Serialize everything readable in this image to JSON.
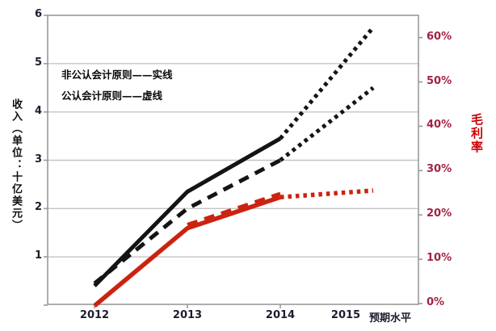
{
  "chart_data": {
    "type": "line",
    "title": "",
    "legend": [
      "非公认会计原则——实线",
      "公认会计原则——虚线"
    ],
    "legend_position": "upper-left-inside",
    "grid": "horizontal",
    "left_axis": {
      "label": "收入（单位：十亿美元）",
      "ticks": [
        1,
        2,
        3,
        4,
        5,
        6
      ],
      "range": [
        0,
        6
      ]
    },
    "right_axis": {
      "label": "毛利率",
      "ticks": [
        "0%",
        "10%",
        "20%",
        "30%",
        "40%",
        "50%",
        "60%"
      ],
      "tick_values": [
        0,
        10,
        20,
        30,
        40,
        50,
        60
      ],
      "range_pct": [
        0,
        65
      ]
    },
    "x_labels": [
      "2012",
      "2013",
      "2014",
      "2015",
      "预期水平"
    ],
    "x_tick_years": [
      2012,
      2013,
      2014
    ],
    "series": [
      {
        "name": "非公认会计原则毛利率",
        "axis": "right",
        "style": "solid",
        "color": "#cc2211",
        "width": 5.5,
        "actual": {
          "x": [
            2012,
            2013,
            2014
          ],
          "y": [
            -0.5,
            17,
            24
          ]
        },
        "projected": {
          "x": [
            2014,
            2015
          ],
          "y": [
            24,
            25.5
          ]
        }
      },
      {
        "name": "公认会计原则毛利率",
        "axis": "right",
        "style": "dashed",
        "color": "#cc2211",
        "width": 4.5,
        "actual": {
          "x": [
            2013,
            2014
          ],
          "y": [
            17.8,
            24.8
          ]
        },
        "projected": null
      },
      {
        "name": "非公认会计原则收入",
        "axis": "left",
        "style": "solid",
        "color": "#141414",
        "width": 5,
        "actual": {
          "x": [
            2012,
            2013,
            2014
          ],
          "y": [
            0.4,
            2.35,
            3.45
          ]
        },
        "projected": {
          "x": [
            2014,
            2015
          ],
          "y": [
            3.45,
            5.75
          ]
        }
      },
      {
        "name": "公认会计原则收入",
        "axis": "left",
        "style": "dashed",
        "color": "#141414",
        "width": 5,
        "actual": {
          "x": [
            2012,
            2013,
            2014
          ],
          "y": [
            0.45,
            2.0,
            3.0
          ]
        },
        "projected": {
          "x": [
            2014,
            2015
          ],
          "y": [
            3.0,
            4.5
          ]
        }
      }
    ],
    "colors": {
      "grid": "#c4c4c4",
      "axis_border": "#999999",
      "black_series": "#141414",
      "red_series": "#cc2211",
      "left_tick_text": "#1c1c2e",
      "right_tick_text": "#a22344",
      "right_axis_title": "#cc0000"
    }
  }
}
